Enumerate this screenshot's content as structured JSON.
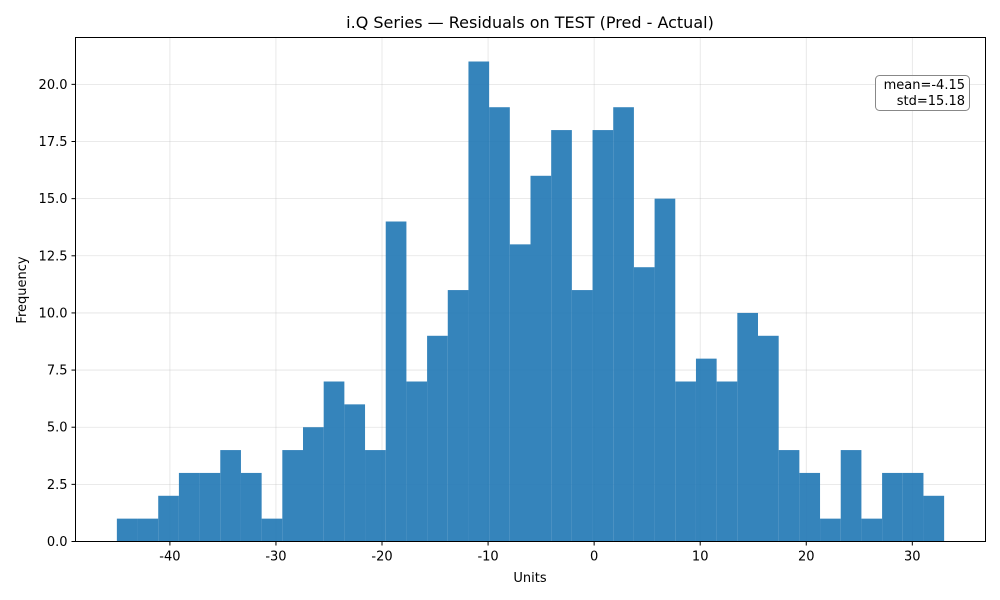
{
  "chart_data": {
    "type": "bar",
    "title": "i.Q Series — Residuals on TEST (Pred - Actual)",
    "xlabel": "Units",
    "ylabel": "Frequency",
    "xlim": [
      -48.9,
      36.9
    ],
    "ylim": [
      0,
      22.05
    ],
    "xticks": [
      -40,
      -30,
      -20,
      -10,
      0,
      10,
      20,
      30
    ],
    "xtick_labels": [
      "-40",
      "-30",
      "-20",
      "-10",
      "0",
      "10",
      "20",
      "30"
    ],
    "yticks": [
      0,
      2.5,
      5,
      7.5,
      10,
      12.5,
      15,
      17.5,
      20
    ],
    "ytick_labels": [
      "0.0",
      "2.5",
      "5.0",
      "7.5",
      "10.0",
      "12.5",
      "15.0",
      "17.5",
      "20.0"
    ],
    "grid": true,
    "bin_start": -45.0,
    "bin_width": 1.95,
    "values": [
      1,
      1,
      2,
      3,
      3,
      4,
      3,
      1,
      4,
      5,
      7,
      6,
      4,
      14,
      7,
      9,
      11,
      21,
      19,
      13,
      16,
      18,
      11,
      18,
      19,
      12,
      15,
      7,
      8,
      7,
      10,
      9,
      4,
      3,
      1,
      4,
      1,
      3,
      3,
      2
    ],
    "color": "#1f77b4",
    "annotation": {
      "lines": [
        "mean=-4.15",
        "std=15.18"
      ],
      "position": "top-right"
    }
  }
}
